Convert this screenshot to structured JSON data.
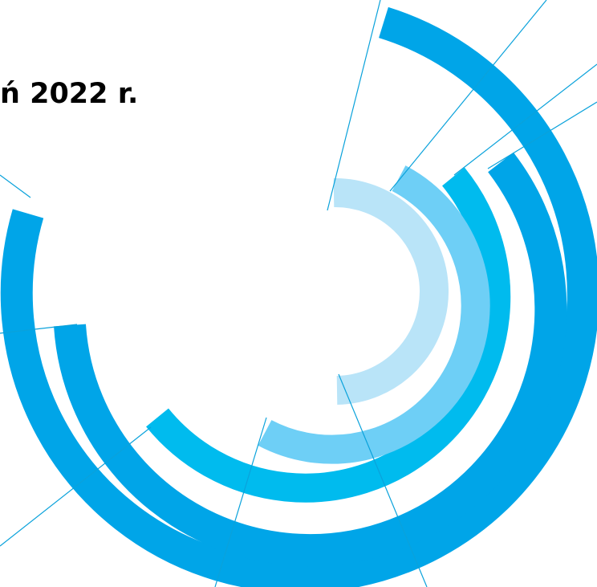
{
  "title": "ń 2022 r.",
  "colors": {
    "arc_outer": "#00a5e8",
    "arc_mid": "#00bbee",
    "arc_inner": "#6ecff6",
    "arc_innermost": "#b9e4f8",
    "line": "#0aa2db"
  }
}
